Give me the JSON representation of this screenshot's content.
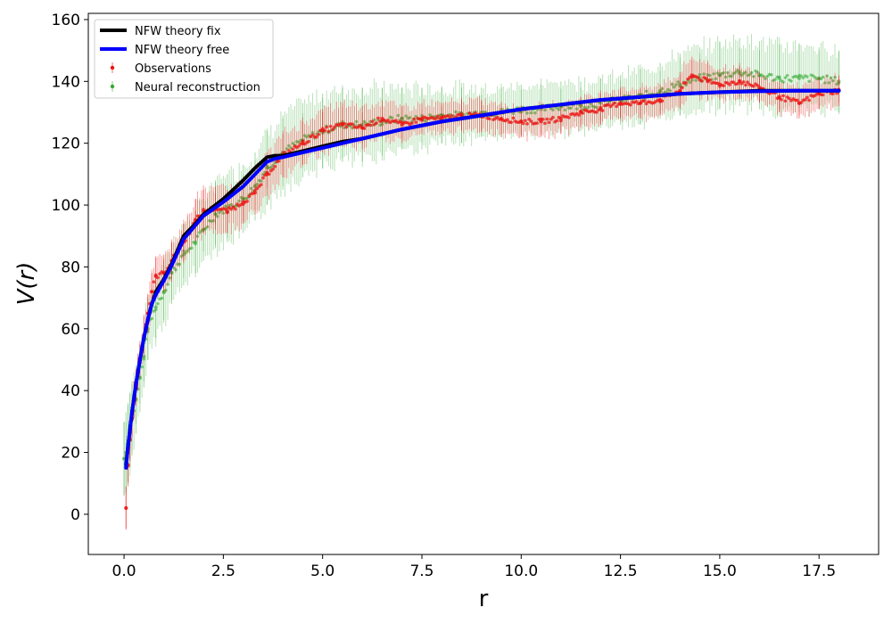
{
  "chart_data": {
    "type": "line",
    "title": "",
    "xlabel": "r",
    "ylabel": "V(r)",
    "xlim": [
      -0.9,
      19.0
    ],
    "ylim": [
      -13,
      162
    ],
    "x_ticks": [
      0.0,
      2.5,
      5.0,
      7.5,
      10.0,
      12.5,
      15.0,
      17.5
    ],
    "x_tick_labels": [
      "0.0",
      "2.5",
      "5.0",
      "7.5",
      "10.0",
      "12.5",
      "15.0",
      "17.5"
    ],
    "y_ticks": [
      0,
      20,
      40,
      60,
      80,
      100,
      120,
      140,
      160
    ],
    "y_tick_labels": [
      "0",
      "20",
      "40",
      "60",
      "80",
      "100",
      "120",
      "140",
      "160"
    ],
    "grid": false,
    "legend_position": "top-left",
    "series": [
      {
        "name": "NFW theory fix",
        "kind": "line",
        "color": "#000000",
        "x": [
          0.05,
          0.1,
          0.2,
          0.3,
          0.4,
          0.5,
          0.6,
          0.7,
          0.8,
          1.0,
          1.2,
          1.5,
          1.8,
          2.0,
          2.5,
          3.0,
          3.3,
          3.6,
          3.8,
          4.0,
          4.5,
          5.0,
          5.5,
          6.0,
          6.5,
          7.0,
          8.0,
          9.0,
          10.0,
          11.0,
          12.0,
          13.0,
          14.0,
          15.0,
          16.0,
          17.0,
          18.0
        ],
        "y": [
          16,
          22,
          33,
          42,
          50,
          57,
          63,
          68,
          72,
          76,
          81,
          90,
          94,
          97,
          102,
          108,
          112,
          115.5,
          116,
          116,
          117.5,
          119,
          120.5,
          121.5,
          123,
          124.5,
          127,
          129,
          131,
          132.5,
          134,
          135,
          136,
          136.5,
          137,
          137,
          137
        ]
      },
      {
        "name": "NFW theory free",
        "kind": "line",
        "color": "#0000ff",
        "x": [
          0.05,
          0.1,
          0.2,
          0.3,
          0.4,
          0.5,
          0.6,
          0.7,
          0.8,
          1.0,
          1.2,
          1.5,
          1.8,
          2.0,
          2.5,
          3.0,
          3.3,
          3.6,
          3.8,
          4.0,
          4.5,
          5.0,
          5.5,
          6.0,
          6.5,
          7.0,
          8.0,
          9.0,
          10.0,
          11.0,
          12.0,
          13.0,
          14.0,
          15.0,
          16.0,
          17.0,
          18.0
        ],
        "y": [
          15,
          22,
          33,
          42,
          50,
          57,
          63,
          68,
          71,
          75.5,
          80.5,
          89,
          93.5,
          96.5,
          101,
          106,
          110,
          114,
          115,
          115.5,
          117,
          118.5,
          120,
          121.5,
          123,
          124.5,
          127,
          129,
          131,
          132.5,
          134,
          135,
          136,
          136.5,
          136.8,
          137,
          137
        ]
      },
      {
        "name": "Observations",
        "kind": "errorbar",
        "color": "#ee1111",
        "x": [
          0.05,
          0.1,
          0.15,
          0.2,
          0.25,
          0.3,
          0.35,
          0.4,
          0.5,
          0.6,
          0.7,
          0.8,
          1.0,
          1.2,
          1.5,
          1.8,
          2.0,
          2.3,
          2.6,
          3.0,
          3.3,
          3.6,
          4.0,
          4.5,
          5.0,
          5.5,
          6.0,
          6.5,
          7.0,
          7.5,
          8.0,
          8.5,
          9.0,
          9.5,
          10.0,
          10.5,
          11.0,
          11.5,
          12.0,
          12.5,
          13.0,
          13.5,
          14.0,
          14.3,
          14.7,
          15.0,
          15.5,
          16.0,
          16.5,
          17.0,
          17.5,
          18.0
        ],
        "y": [
          2,
          16,
          24,
          31,
          37,
          41,
          46,
          50,
          58,
          65,
          72,
          77,
          78,
          82,
          88,
          95,
          98,
          99,
          98,
          101,
          104,
          110,
          116,
          120,
          124,
          126,
          125,
          128,
          126,
          128,
          128,
          129,
          129,
          128,
          127,
          127,
          128,
          130,
          131,
          133,
          133,
          134,
          137,
          142,
          140,
          139,
          140,
          138,
          135,
          133,
          136,
          137
        ],
        "err": [
          7,
          7,
          7,
          6,
          6,
          6,
          6,
          6,
          6,
          6,
          6,
          6,
          6,
          6,
          6,
          7,
          7,
          7,
          7,
          7,
          7,
          7,
          7,
          7,
          7,
          7,
          7,
          6,
          6,
          5,
          5,
          5,
          5,
          5,
          5,
          5,
          5,
          5,
          5,
          5,
          5,
          5,
          6,
          6,
          6,
          5,
          5,
          5,
          5,
          5,
          5,
          5
        ]
      },
      {
        "name": "Neural reconstruction",
        "kind": "errorbar",
        "color": "#33aa33",
        "x": [
          0.0,
          0.05,
          0.1,
          0.15,
          0.2,
          0.3,
          0.4,
          0.5,
          0.6,
          0.8,
          1.0,
          1.2,
          1.5,
          1.8,
          2.0,
          2.3,
          2.6,
          3.0,
          3.3,
          3.6,
          4.0,
          4.5,
          5.0,
          5.5,
          6.0,
          6.5,
          7.0,
          7.5,
          8.0,
          8.5,
          9.0,
          9.5,
          10.0,
          10.5,
          11.0,
          11.5,
          12.0,
          12.5,
          13.0,
          13.5,
          14.0,
          14.5,
          15.0,
          15.5,
          16.0,
          16.5,
          17.0,
          17.5,
          18.0
        ],
        "y": [
          18,
          20,
          23,
          27,
          31,
          37,
          44,
          51,
          60,
          67,
          72,
          78,
          84,
          88,
          92,
          97,
          99,
          102,
          106,
          112,
          117,
          121,
          124,
          126,
          126,
          127,
          128,
          128,
          129,
          129,
          130,
          130,
          131,
          131,
          132,
          132,
          133,
          134,
          135,
          137,
          139,
          141,
          142,
          143,
          142,
          141,
          141,
          141,
          140
        ],
        "err": [
          12,
          13,
          13,
          12,
          12,
          11,
          11,
          10,
          10,
          10,
          10,
          10,
          10,
          10,
          10,
          11,
          11,
          11,
          11,
          12,
          12,
          12,
          12,
          12,
          12,
          11,
          10,
          10,
          9,
          9,
          8,
          8,
          8,
          8,
          8,
          8,
          8,
          8,
          9,
          9,
          10,
          10,
          11,
          11,
          11,
          11,
          11,
          10,
          10
        ]
      }
    ]
  }
}
